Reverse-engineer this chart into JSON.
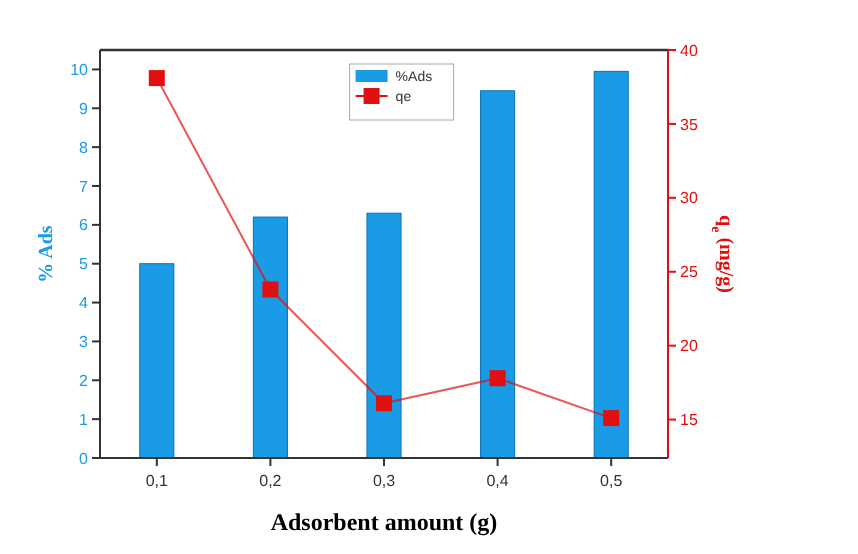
{
  "chart_data": {
    "type": "bar",
    "xlabel": "Adsorbent amount (g)",
    "ylabel": "% Ads",
    "y2label": "q$_{e}$ (mg/g)",
    "categories": [
      "0,1",
      "0,2",
      "0,3",
      "0,4",
      "0,5"
    ],
    "series": [
      {
        "name": "%Ads",
        "color": "#1a9be6",
        "values": [
          5.0,
          6.2,
          6.3,
          9.45,
          9.95
        ]
      },
      {
        "name": "qe",
        "type": "line",
        "axis": "y2",
        "color": "#e01010",
        "marker": "square",
        "values": [
          38.1,
          23.8,
          16.1,
          17.8,
          15.1
        ]
      }
    ],
    "ylim": [
      0,
      10.5
    ],
    "yticks": [
      0,
      1,
      2,
      3,
      4,
      5,
      6,
      7,
      8,
      9,
      10
    ],
    "y2lim": [
      12.4,
      40
    ],
    "y2ticks": [
      15,
      20,
      25,
      30,
      35,
      40
    ],
    "legend": "top",
    "grid": false
  }
}
